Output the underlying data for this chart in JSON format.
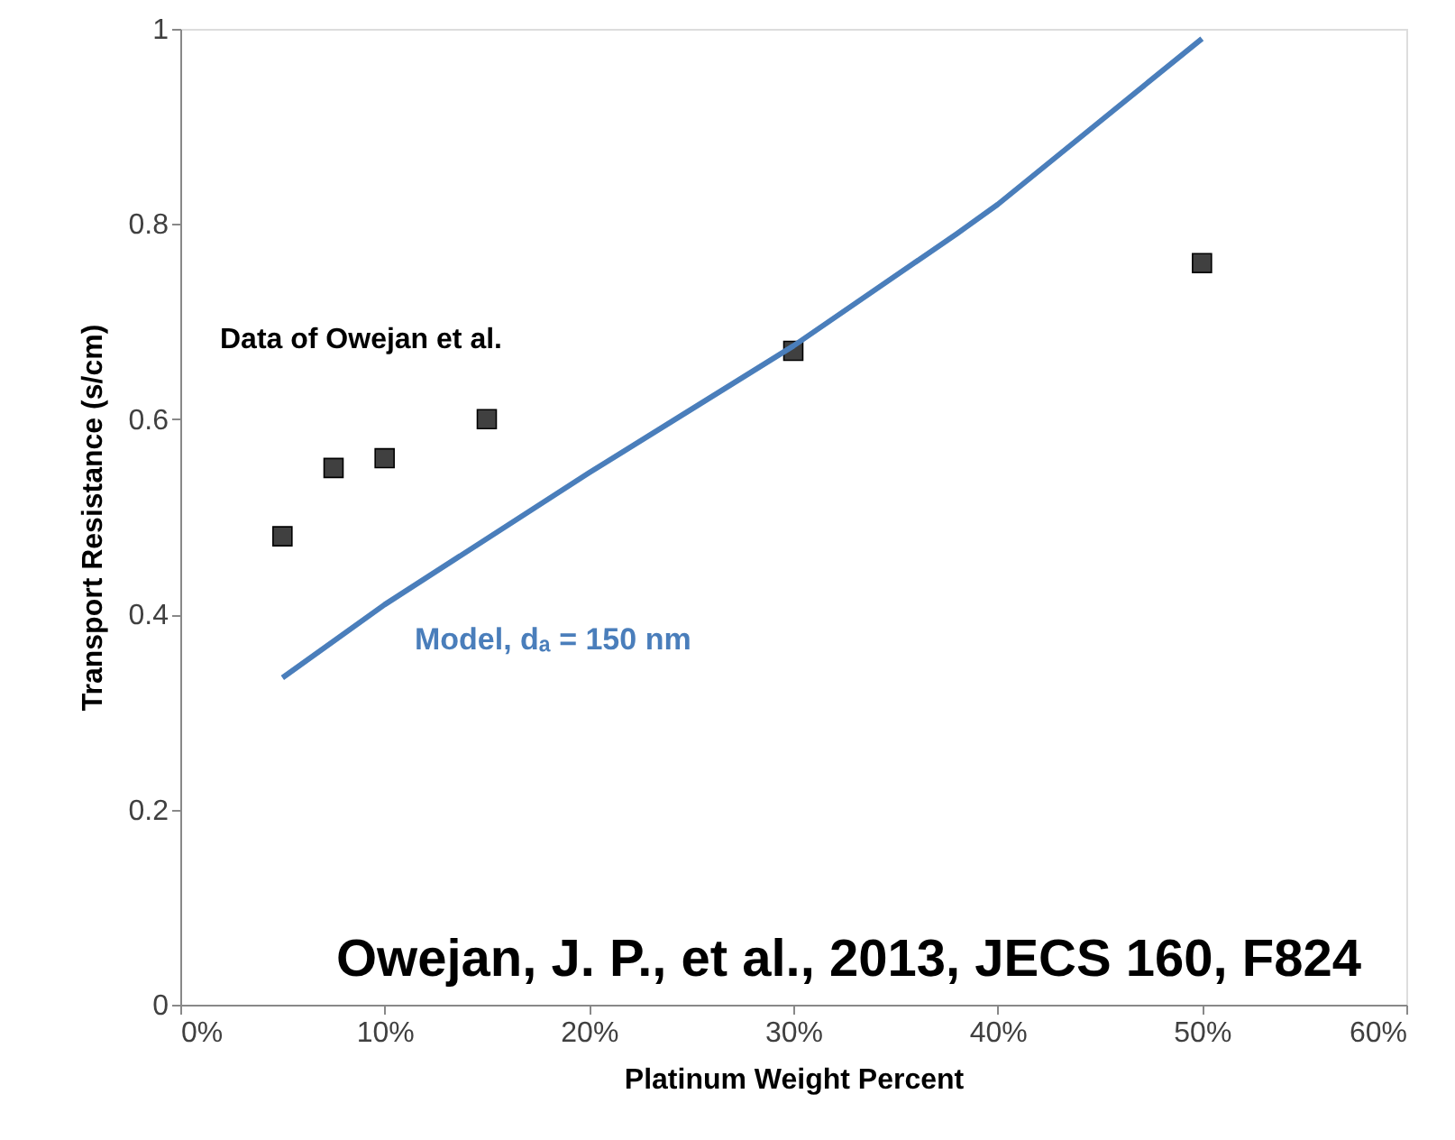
{
  "chart_data": {
    "type": "scatter",
    "xlabel": "Platinum Weight Percent",
    "ylabel": "Transport Resistance (s/cm)",
    "xlim": [
      0,
      60
    ],
    "ylim": [
      0,
      1
    ],
    "xticks": [
      {
        "value": 0,
        "label": "0%"
      },
      {
        "value": 10,
        "label": "10%"
      },
      {
        "value": 20,
        "label": "20%"
      },
      {
        "value": 30,
        "label": "30%"
      },
      {
        "value": 40,
        "label": "40%"
      },
      {
        "value": 50,
        "label": "50%"
      },
      {
        "value": 60,
        "label": "60%"
      }
    ],
    "yticks": [
      {
        "value": 0,
        "label": "0"
      },
      0.2,
      0.4,
      0.6,
      0.8,
      {
        "value": 1,
        "label": "1"
      }
    ],
    "grid": false,
    "series": [
      {
        "color": "#404040",
        "marker": "square",
        "x": [
          5,
          7.5,
          10,
          15,
          30,
          50
        ],
        "values": [
          0.48,
          0.55,
          0.56,
          0.6,
          0.67,
          0.76
        ]
      },
      {
        "type": "line",
        "color": "#4a7ebb",
        "line_style": "solid",
        "marker": "none",
        "x": [
          5,
          10,
          20,
          30,
          38,
          40,
          45,
          50
        ],
        "values": [
          0.335,
          0.41,
          0.545,
          0.675,
          0.79,
          0.82,
          0.905,
          0.99
        ]
      }
    ],
    "annotations": [
      "Data of Owejan et al.",
      "Model, dₐ = 150 nm",
      "Owejan, J. P., et al., 2013, JECS 160, F824"
    ]
  }
}
